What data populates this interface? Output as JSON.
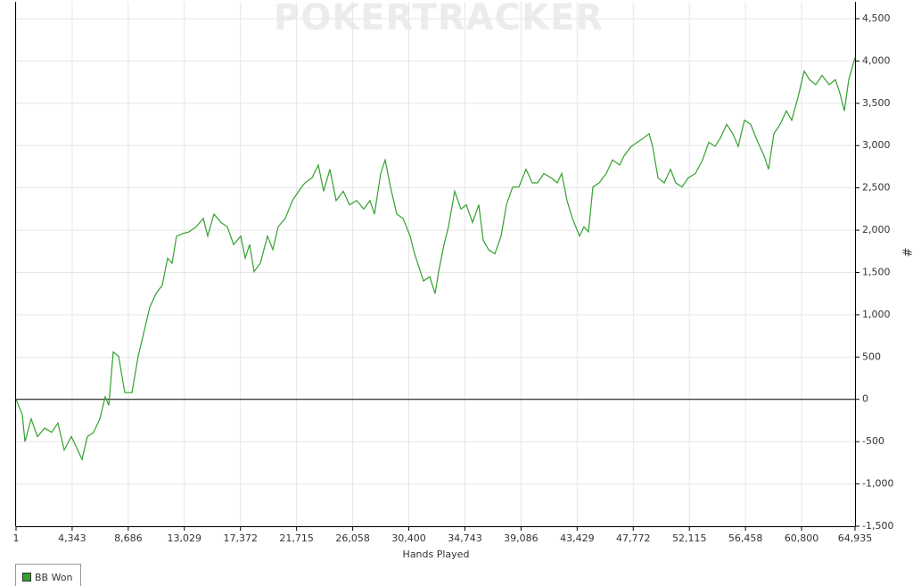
{
  "chart_data": {
    "type": "line",
    "watermark": "POKERTRACKER",
    "x_label": "Hands Played",
    "y_label": "#",
    "grid": true,
    "legend": "bottom-left",
    "xlim": [
      1,
      64935
    ],
    "ylim": [
      -1500,
      4700
    ],
    "xticks": [
      1,
      {
        "value": 4343,
        "label": "4,343"
      },
      {
        "value": 8686,
        "label": "8,686"
      },
      {
        "value": 13029,
        "label": "13,029"
      },
      {
        "value": 17372,
        "label": "17,372"
      },
      {
        "value": 21715,
        "label": "21,715"
      },
      {
        "value": 26058,
        "label": "26,058"
      },
      {
        "value": 30400,
        "label": "30,400"
      },
      {
        "value": 34743,
        "label": "34,743"
      },
      {
        "value": 39086,
        "label": "39,086"
      },
      {
        "value": 43429,
        "label": "43,429"
      },
      {
        "value": 47772,
        "label": "47,772"
      },
      {
        "value": 52115,
        "label": "52,115"
      },
      {
        "value": 56458,
        "label": "56,458"
      },
      {
        "value": 60800,
        "label": "60,800"
      },
      {
        "value": 64935,
        "label": "64,935"
      }
    ],
    "yticks": [
      {
        "value": -1500,
        "label": "-1,500"
      },
      {
        "value": -1000,
        "label": "-1,000"
      },
      -500,
      0,
      500,
      {
        "value": 1000,
        "label": "1,000"
      },
      {
        "value": 1500,
        "label": "1,500"
      },
      {
        "value": 2000,
        "label": "2,000"
      },
      {
        "value": 2500,
        "label": "2,500"
      },
      {
        "value": 3000,
        "label": "3,000"
      },
      {
        "value": 3500,
        "label": "3,500"
      },
      {
        "value": 4000,
        "label": "4,000"
      },
      {
        "value": 4500,
        "label": "4,500"
      }
    ],
    "x": [
      1,
      484,
      691,
      1174,
      1657,
      2209,
      2761,
      3244,
      3727,
      4279,
      4624,
      5107,
      5521,
      6004,
      6487,
      6901,
      7177,
      7522,
      7936,
      8419,
      8972,
      9454,
      9938,
      10352,
      10835,
      11318,
      11732,
      12077,
      12422,
      12905,
      13388,
      13940,
      14492,
      14837,
      15320,
      15872,
      16355,
      16838,
      17390,
      17735,
      18080,
      18425,
      18908,
      19460,
      19874,
      20288,
      20840,
      21393,
      21876,
      22359,
      22911,
      23394,
      23808,
      24290,
      24774,
      25326,
      25808,
      26360,
      26913,
      27396,
      27741,
      28224,
      28569,
      28983,
      29466,
      29949,
      30501,
      30846,
      31191,
      31536,
      32019,
      32433,
      32709,
      33123,
      33467,
      33950,
      34433,
      34848,
      35331,
      35814,
      36159,
      36573,
      37056,
      37539,
      37953,
      38436,
      38919,
      39471,
      39954,
      40368,
      40851,
      41403,
      41886,
      42231,
      42645,
      43059,
      43611,
      43956,
      44301,
      44646,
      45129,
      45681,
      46164,
      46717,
      47062,
      47614,
      48096,
      48579,
      48993,
      49269,
      49683,
      50166,
      50649,
      51063,
      51546,
      52029,
      52581,
      53134,
      53617,
      54100,
      54514,
      54997,
      55480,
      55894,
      56377,
      56860,
      57412,
      57895,
      58240,
      58654,
      59137,
      59620,
      60034,
      60517,
      61000,
      61414,
      61897,
      62380,
      62932,
      63414,
      63759,
      64104,
      64449,
      64935
    ],
    "series": [
      {
        "name": "BB Won",
        "color": "#33a02c",
        "values": [
          0,
          -180,
          -500,
          -230,
          -440,
          -340,
          -390,
          -280,
          -600,
          -440,
          -550,
          -710,
          -440,
          -390,
          -230,
          30,
          -70,
          560,
          510,
          80,
          80,
          510,
          820,
          1090,
          1250,
          1350,
          1670,
          1610,
          1930,
          1960,
          1980,
          2040,
          2140,
          1930,
          2190,
          2090,
          2040,
          1830,
          1930,
          1670,
          1830,
          1510,
          1610,
          1930,
          1770,
          2040,
          2140,
          2350,
          2460,
          2560,
          2620,
          2770,
          2460,
          2720,
          2350,
          2460,
          2300,
          2350,
          2250,
          2350,
          2190,
          2670,
          2830,
          2510,
          2190,
          2140,
          1930,
          1720,
          1560,
          1400,
          1450,
          1250,
          1510,
          1830,
          2040,
          2460,
          2250,
          2300,
          2090,
          2300,
          1880,
          1770,
          1720,
          1930,
          2300,
          2510,
          2510,
          2720,
          2560,
          2560,
          2670,
          2620,
          2560,
          2670,
          2350,
          2140,
          1930,
          2040,
          1980,
          2510,
          2560,
          2670,
          2830,
          2770,
          2880,
          2990,
          3040,
          3090,
          3140,
          2990,
          2620,
          2560,
          2720,
          2560,
          2510,
          2620,
          2670,
          2830,
          3040,
          2990,
          3090,
          3250,
          3140,
          2990,
          3300,
          3250,
          3040,
          2880,
          2720,
          3140,
          3250,
          3410,
          3300,
          3570,
          3880,
          3780,
          3720,
          3830,
          3720,
          3780,
          3620,
          3410,
          3780,
          4040
        ]
      }
    ]
  }
}
